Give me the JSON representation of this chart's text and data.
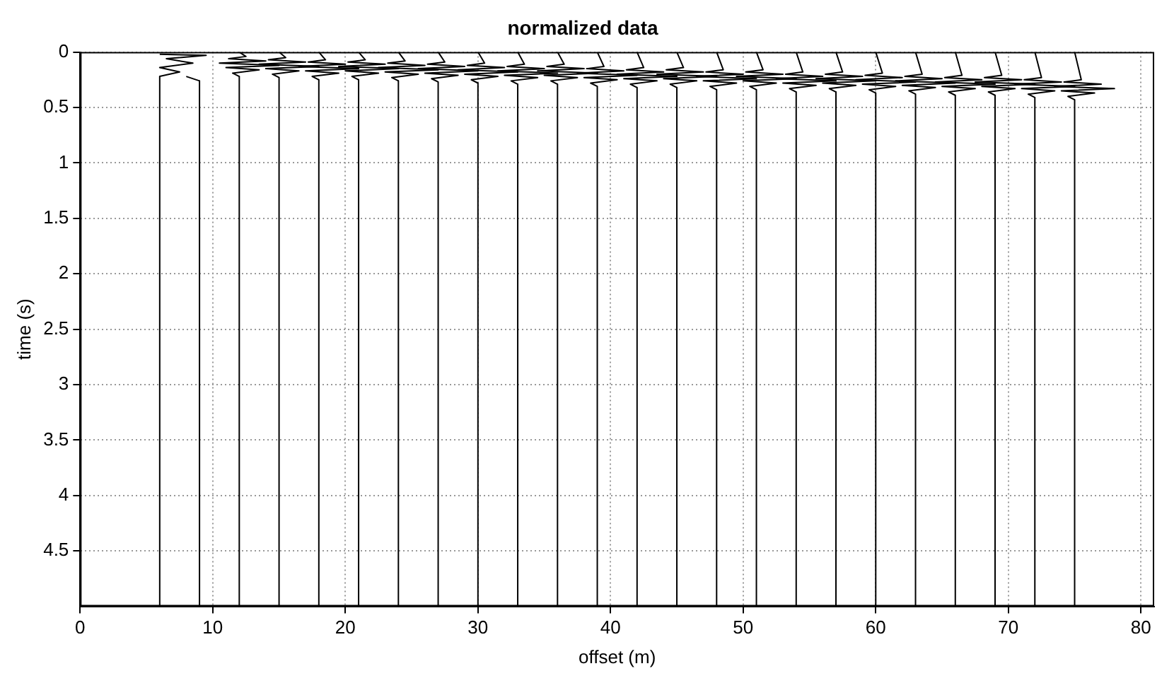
{
  "chart_data": {
    "type": "line",
    "title": "normalized data",
    "xlabel": "offset (m)",
    "ylabel": "time (s)",
    "xlim": [
      0,
      81
    ],
    "xticks": [
      0,
      10,
      20,
      30,
      40,
      50,
      60,
      70,
      80
    ],
    "ylim": [
      5,
      0
    ],
    "yticks": [
      0,
      0.5,
      1,
      1.5,
      2,
      2.5,
      3,
      3.5,
      4,
      4.5
    ],
    "grid": true,
    "legend": false,
    "marker": "none",
    "line_style": "solid",
    "series": [
      {
        "color": "#000000",
        "x": [
          6,
          9.5,
          6.5,
          8.5,
          6,
          7.5,
          6,
          6
        ],
        "values": [
          0.02,
          0.03,
          0.06,
          0.1,
          0.14,
          0.18,
          0.22,
          5
        ]
      },
      {
        "color": "#000000",
        "x": [
          8,
          9,
          9,
          9
        ],
        "values": [
          0.22,
          0.26,
          0.3,
          5
        ]
      },
      {
        "color": "#000000",
        "x": [
          12,
          12.5,
          11.2,
          14,
          10.5,
          15,
          11,
          13.5,
          11.5,
          12,
          12
        ],
        "values": [
          0,
          0.04,
          0.06,
          0.08,
          0.1,
          0.12,
          0.14,
          0.16,
          0.19,
          0.22,
          5
        ]
      },
      {
        "color": "#000000",
        "x": [
          15,
          15.5,
          14.2,
          17,
          13.5,
          18,
          14,
          16.5,
          14.5,
          15,
          15
        ],
        "values": [
          0,
          0.05,
          0.07,
          0.09,
          0.11,
          0.13,
          0.15,
          0.17,
          0.2,
          0.23,
          5
        ]
      },
      {
        "color": "#000000",
        "x": [
          18,
          18.5,
          17.2,
          20,
          16.5,
          21,
          17,
          19.5,
          17.5,
          18,
          18
        ],
        "values": [
          0,
          0.07,
          0.09,
          0.11,
          0.13,
          0.15,
          0.17,
          0.19,
          0.22,
          0.25,
          5
        ]
      },
      {
        "color": "#000000",
        "x": [
          21,
          21.5,
          20.2,
          23,
          19.5,
          24,
          20,
          22.5,
          20.5,
          21,
          21
        ],
        "values": [
          0,
          0.07,
          0.09,
          0.11,
          0.13,
          0.15,
          0.17,
          0.19,
          0.22,
          0.25,
          5
        ]
      },
      {
        "color": "#000000",
        "x": [
          24,
          24.5,
          23.2,
          26,
          22.5,
          27,
          23,
          25.5,
          23.5,
          24,
          24
        ],
        "values": [
          0,
          0.08,
          0.1,
          0.12,
          0.14,
          0.16,
          0.18,
          0.2,
          0.23,
          0.26,
          5
        ]
      },
      {
        "color": "#000000",
        "x": [
          27,
          27.5,
          26.2,
          29,
          25.5,
          30,
          26,
          28.5,
          26.5,
          27,
          27
        ],
        "values": [
          0,
          0.09,
          0.11,
          0.13,
          0.15,
          0.17,
          0.19,
          0.21,
          0.24,
          0.27,
          5
        ]
      },
      {
        "color": "#000000",
        "x": [
          30,
          30.5,
          29.2,
          32,
          28.5,
          33,
          29,
          31.5,
          29.5,
          30,
          30
        ],
        "values": [
          0,
          0.1,
          0.12,
          0.14,
          0.16,
          0.18,
          0.2,
          0.22,
          0.25,
          0.28,
          5
        ]
      },
      {
        "color": "#000000",
        "x": [
          33,
          33.5,
          32.2,
          35,
          31.5,
          36,
          32,
          34.5,
          32.5,
          33,
          33
        ],
        "values": [
          0,
          0.11,
          0.13,
          0.15,
          0.17,
          0.19,
          0.21,
          0.23,
          0.26,
          0.29,
          5
        ]
      },
      {
        "color": "#000000",
        "x": [
          36,
          36.5,
          35.2,
          38,
          34.5,
          39,
          35,
          37.5,
          35.5,
          36,
          36
        ],
        "values": [
          0,
          0.11,
          0.13,
          0.15,
          0.17,
          0.19,
          0.21,
          0.23,
          0.26,
          0.29,
          5
        ]
      },
      {
        "color": "#000000",
        "x": [
          39,
          39.5,
          38.2,
          41,
          37.5,
          42,
          38,
          40.5,
          38.5,
          39,
          39
        ],
        "values": [
          0,
          0.13,
          0.15,
          0.17,
          0.19,
          0.21,
          0.23,
          0.25,
          0.28,
          0.31,
          5
        ]
      },
      {
        "color": "#000000",
        "x": [
          42,
          42.5,
          41.2,
          44,
          40.5,
          45,
          41,
          43.5,
          41.5,
          42,
          42
        ],
        "values": [
          0,
          0.14,
          0.16,
          0.18,
          0.2,
          0.22,
          0.24,
          0.26,
          0.29,
          0.32,
          5
        ]
      },
      {
        "color": "#000000",
        "x": [
          45,
          45.5,
          44.2,
          47,
          43.5,
          48,
          44,
          46.5,
          44.5,
          45,
          45
        ],
        "values": [
          0,
          0.14,
          0.16,
          0.18,
          0.2,
          0.22,
          0.24,
          0.26,
          0.29,
          0.32,
          5
        ]
      },
      {
        "color": "#000000",
        "x": [
          48,
          48.5,
          47.2,
          50,
          46.5,
          51,
          47,
          49.5,
          47.5,
          48,
          48
        ],
        "values": [
          0,
          0.16,
          0.18,
          0.2,
          0.22,
          0.24,
          0.26,
          0.28,
          0.31,
          0.34,
          5
        ]
      },
      {
        "color": "#000000",
        "x": [
          51,
          51.5,
          50.2,
          53,
          49.5,
          54,
          50,
          52.5,
          50.5,
          51,
          51
        ],
        "values": [
          0,
          0.16,
          0.18,
          0.2,
          0.22,
          0.24,
          0.26,
          0.28,
          0.31,
          0.34,
          5
        ]
      },
      {
        "color": "#000000",
        "x": [
          54,
          54.5,
          53.2,
          56,
          52.5,
          57,
          53,
          55.5,
          53.5,
          54,
          54
        ],
        "values": [
          0,
          0.18,
          0.2,
          0.22,
          0.24,
          0.26,
          0.28,
          0.3,
          0.33,
          0.36,
          5
        ]
      },
      {
        "color": "#000000",
        "x": [
          57,
          57.5,
          56.2,
          59,
          55.5,
          60,
          56,
          58.5,
          56.5,
          57,
          57
        ],
        "values": [
          0,
          0.18,
          0.2,
          0.22,
          0.24,
          0.26,
          0.28,
          0.3,
          0.33,
          0.36,
          5
        ]
      },
      {
        "color": "#000000",
        "x": [
          60,
          60.5,
          59.2,
          62,
          58.5,
          63,
          59,
          61.5,
          59.5,
          60,
          60
        ],
        "values": [
          0,
          0.19,
          0.21,
          0.23,
          0.25,
          0.27,
          0.29,
          0.31,
          0.34,
          0.37,
          5
        ]
      },
      {
        "color": "#000000",
        "x": [
          63,
          63.5,
          62.2,
          65,
          61.5,
          66,
          62,
          64.5,
          62.5,
          63,
          63
        ],
        "values": [
          0,
          0.2,
          0.22,
          0.24,
          0.26,
          0.28,
          0.3,
          0.32,
          0.35,
          0.38,
          5
        ]
      },
      {
        "color": "#000000",
        "x": [
          66,
          66.5,
          65.2,
          68,
          64.5,
          69,
          65,
          67.5,
          65.5,
          66,
          66
        ],
        "values": [
          0,
          0.21,
          0.23,
          0.25,
          0.27,
          0.29,
          0.31,
          0.33,
          0.36,
          0.39,
          5
        ]
      },
      {
        "color": "#000000",
        "x": [
          69,
          69.5,
          68.2,
          71,
          67.5,
          72,
          68,
          70.5,
          68.5,
          69,
          69
        ],
        "values": [
          0,
          0.21,
          0.23,
          0.25,
          0.27,
          0.29,
          0.31,
          0.33,
          0.36,
          0.39,
          5
        ]
      },
      {
        "color": "#000000",
        "x": [
          72,
          72.5,
          71.2,
          74,
          70.5,
          75,
          71,
          73.5,
          71.5,
          72,
          72
        ],
        "values": [
          0,
          0.23,
          0.25,
          0.27,
          0.29,
          0.31,
          0.33,
          0.35,
          0.38,
          0.41,
          5
        ]
      },
      {
        "color": "#000000",
        "x": [
          75,
          75.5,
          74.2,
          77,
          73.5,
          78,
          74,
          76.5,
          74.5,
          75,
          75
        ],
        "values": [
          0,
          0.25,
          0.27,
          0.29,
          0.31,
          0.33,
          0.35,
          0.37,
          0.4,
          0.43,
          5
        ]
      }
    ]
  }
}
